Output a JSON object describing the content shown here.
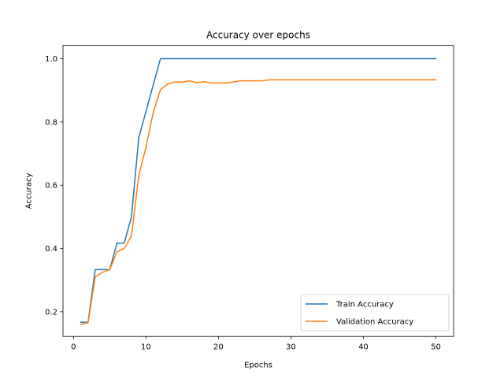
{
  "chart_data": {
    "type": "line",
    "title": "Accuracy over epochs",
    "xlabel": "Epochs",
    "ylabel": "Accuracy",
    "xlim": [
      -1.45,
      52.45
    ],
    "ylim": [
      0.122,
      1.042
    ],
    "xticks": [
      0,
      10,
      20,
      30,
      40,
      50
    ],
    "xtick_labels": [
      "0",
      "10",
      "20",
      "30",
      "40",
      "50"
    ],
    "yticks": [
      0.2,
      0.4,
      0.6,
      0.8,
      1.0
    ],
    "ytick_labels": [
      "0.2",
      "0.4",
      "0.6",
      "0.8",
      "1.0"
    ],
    "grid": false,
    "legend_position": "lower-right",
    "x": [
      1,
      2,
      3,
      4,
      5,
      6,
      7,
      8,
      9,
      10,
      11,
      12,
      13,
      14,
      15,
      16,
      17,
      18,
      19,
      20,
      21,
      22,
      23,
      24,
      25,
      26,
      27,
      28,
      29,
      30,
      31,
      32,
      33,
      34,
      35,
      36,
      37,
      38,
      39,
      40,
      41,
      42,
      43,
      44,
      45,
      46,
      47,
      48,
      49,
      50
    ],
    "series": [
      {
        "name": "Train Accuracy",
        "color": "#1f77b4",
        "values": [
          0.167,
          0.167,
          0.333,
          0.333,
          0.333,
          0.417,
          0.417,
          0.5,
          0.75,
          0.833,
          0.917,
          1.0,
          1.0,
          1.0,
          1.0,
          1.0,
          1.0,
          1.0,
          1.0,
          1.0,
          1.0,
          1.0,
          1.0,
          1.0,
          1.0,
          1.0,
          1.0,
          1.0,
          1.0,
          1.0,
          1.0,
          1.0,
          1.0,
          1.0,
          1.0,
          1.0,
          1.0,
          1.0,
          1.0,
          1.0,
          1.0,
          1.0,
          1.0,
          1.0,
          1.0,
          1.0,
          1.0,
          1.0,
          1.0,
          1.0
        ]
      },
      {
        "name": "Validation Accuracy",
        "color": "#ff7f0e",
        "values": [
          0.16,
          0.165,
          0.31,
          0.325,
          0.333,
          0.39,
          0.4,
          0.44,
          0.63,
          0.72,
          0.83,
          0.902,
          0.92,
          0.926,
          0.926,
          0.93,
          0.924,
          0.927,
          0.923,
          0.923,
          0.923,
          0.926,
          0.93,
          0.93,
          0.93,
          0.93,
          0.933,
          0.933,
          0.933,
          0.933,
          0.933,
          0.933,
          0.933,
          0.933,
          0.933,
          0.933,
          0.933,
          0.933,
          0.933,
          0.933,
          0.933,
          0.933,
          0.933,
          0.933,
          0.933,
          0.933,
          0.933,
          0.933,
          0.933,
          0.933
        ]
      }
    ]
  }
}
